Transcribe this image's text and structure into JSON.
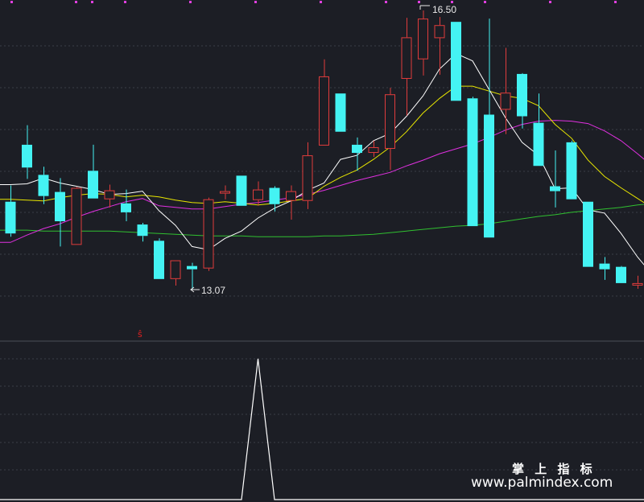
{
  "watermark": {
    "line1": "掌 上 指 标",
    "line2": "www.palmindex.com"
  },
  "colors": {
    "background": "#1c1e25",
    "up": "#e03c3c",
    "down": "#44f3f3",
    "ma5": "#ffffff",
    "ma10": "#e8e600",
    "ma20": "#e030e0",
    "ma60": "#30c030",
    "indicator": "#ffffff",
    "signal": "#e02020",
    "grid": "#3a3d47",
    "dots": "#e040e0"
  },
  "chart_data": {
    "type": "candlestick",
    "price_range": [
      12.3,
      16.5
    ],
    "annotations": {
      "high": "16.50",
      "low": "13.07"
    },
    "signal_marker": "ŝ",
    "candles": [
      {
        "o": 14.15,
        "h": 14.35,
        "l": 13.72,
        "c": 13.76
      },
      {
        "o": 14.85,
        "h": 15.09,
        "l": 14.43,
        "c": 14.57
      },
      {
        "o": 14.48,
        "h": 14.58,
        "l": 14.12,
        "c": 14.22
      },
      {
        "o": 14.27,
        "h": 14.44,
        "l": 13.6,
        "c": 13.91
      },
      {
        "o": 13.62,
        "h": 14.33,
        "l": 13.62,
        "c": 14.32
      },
      {
        "o": 14.53,
        "h": 14.85,
        "l": 14.19,
        "c": 14.19
      },
      {
        "o": 14.18,
        "h": 14.36,
        "l": 14.08,
        "c": 14.29
      },
      {
        "o": 14.13,
        "h": 14.3,
        "l": 13.91,
        "c": 14.02
      },
      {
        "o": 13.87,
        "h": 13.89,
        "l": 13.66,
        "c": 13.73
      },
      {
        "o": 13.67,
        "h": 13.7,
        "l": 13.2,
        "c": 13.2
      },
      {
        "o": 13.2,
        "h": 13.43,
        "l": 13.12,
        "c": 13.43
      },
      {
        "o": 13.36,
        "h": 13.4,
        "l": 13.07,
        "c": 13.32
      },
      {
        "o": 13.33,
        "h": 14.2,
        "l": 13.3,
        "c": 14.18
      },
      {
        "o": 14.25,
        "h": 14.35,
        "l": 14.18,
        "c": 14.28
      },
      {
        "o": 14.47,
        "h": 14.47,
        "l": 14.1,
        "c": 14.1
      },
      {
        "o": 14.17,
        "h": 14.4,
        "l": 14.1,
        "c": 14.3
      },
      {
        "o": 14.32,
        "h": 14.34,
        "l": 14.03,
        "c": 14.12
      },
      {
        "o": 14.16,
        "h": 14.35,
        "l": 13.93,
        "c": 14.28
      },
      {
        "o": 14.16,
        "h": 14.88,
        "l": 14.06,
        "c": 14.72
      },
      {
        "o": 14.84,
        "h": 15.9,
        "l": 14.84,
        "c": 15.69
      },
      {
        "o": 15.48,
        "h": 15.48,
        "l": 15.01,
        "c": 15.01
      },
      {
        "o": 14.85,
        "h": 14.94,
        "l": 14.53,
        "c": 14.75
      },
      {
        "o": 14.75,
        "h": 14.9,
        "l": 14.7,
        "c": 14.82
      },
      {
        "o": 14.8,
        "h": 15.55,
        "l": 14.54,
        "c": 15.47
      },
      {
        "o": 15.66,
        "h": 16.41,
        "l": 15.21,
        "c": 16.17
      },
      {
        "o": 15.9,
        "h": 16.5,
        "l": 15.7,
        "c": 16.4
      },
      {
        "o": 16.16,
        "h": 16.42,
        "l": 15.71,
        "c": 16.32
      },
      {
        "o": 16.36,
        "h": 16.36,
        "l": 15.39,
        "c": 15.39
      },
      {
        "o": 15.42,
        "h": 15.44,
        "l": 13.85,
        "c": 13.85
      },
      {
        "o": 15.22,
        "h": 16.4,
        "l": 13.71,
        "c": 13.71
      },
      {
        "o": 15.28,
        "h": 16.04,
        "l": 14.98,
        "c": 15.49
      },
      {
        "o": 15.72,
        "h": 15.73,
        "l": 15.05,
        "c": 15.2
      },
      {
        "o": 15.12,
        "h": 15.48,
        "l": 14.59,
        "c": 14.59
      },
      {
        "o": 14.34,
        "h": 14.78,
        "l": 14.08,
        "c": 14.28
      },
      {
        "o": 14.88,
        "h": 14.9,
        "l": 14.18,
        "c": 14.18
      },
      {
        "o": 14.15,
        "h": 14.15,
        "l": 13.35,
        "c": 13.35
      },
      {
        "o": 13.39,
        "h": 13.47,
        "l": 13.19,
        "c": 13.32
      },
      {
        "o": 13.35,
        "h": 13.36,
        "l": 13.15,
        "c": 13.15
      },
      {
        "o": 13.12,
        "h": 13.24,
        "l": 13.08,
        "c": 13.15
      },
      {
        "o": 13.22,
        "h": 13.32,
        "l": 13.18,
        "c": 13.21
      }
    ],
    "ma5": [
      14.36,
      14.37,
      14.44,
      14.38,
      14.34,
      14.3,
      14.24,
      14.25,
      14.28,
      14.04,
      13.86,
      13.6,
      13.56,
      13.7,
      13.79,
      13.95,
      14.07,
      14.16,
      14.29,
      14.38,
      14.67,
      14.72,
      14.9,
      14.99,
      15.2,
      15.45,
      15.78,
      15.97,
      15.88,
      15.53,
      15.18,
      14.88,
      14.72,
      14.31,
      14.32,
      14.05,
      14.01,
      13.76,
      13.47,
      13.23
    ],
    "ma10": [
      14.18,
      14.17,
      14.16,
      14.2,
      14.23,
      14.25,
      14.24,
      14.21,
      14.23,
      14.21,
      14.17,
      14.14,
      14.13,
      14.15,
      14.13,
      14.11,
      14.13,
      14.16,
      14.19,
      14.34,
      14.45,
      14.54,
      14.67,
      14.82,
      15.01,
      15.24,
      15.42,
      15.57,
      15.57,
      15.51,
      15.45,
      15.42,
      15.33,
      15.1,
      14.93,
      14.66,
      14.46,
      14.32,
      14.19,
      14.06
    ],
    "ma20": [
      13.65,
      13.74,
      13.82,
      13.88,
      13.96,
      14.03,
      14.09,
      14.15,
      14.19,
      14.1,
      14.08,
      14.06,
      14.06,
      14.09,
      14.12,
      14.14,
      14.17,
      14.2,
      14.24,
      14.29,
      14.35,
      14.41,
      14.46,
      14.51,
      14.59,
      14.66,
      14.74,
      14.8,
      14.86,
      14.94,
      15.03,
      15.1,
      15.14,
      15.15,
      15.14,
      15.11,
      15.02,
      14.9,
      14.74,
      14.57
    ],
    "ma60": [
      13.8,
      13.8,
      13.79,
      13.79,
      13.79,
      13.79,
      13.79,
      13.78,
      13.77,
      13.76,
      13.75,
      13.74,
      13.73,
      13.73,
      13.73,
      13.72,
      13.72,
      13.72,
      13.72,
      13.73,
      13.73,
      13.74,
      13.75,
      13.77,
      13.79,
      13.81,
      13.83,
      13.85,
      13.86,
      13.88,
      13.91,
      13.94,
      13.97,
      13.99,
      14.02,
      14.04,
      14.06,
      14.08,
      14.11,
      14.13
    ],
    "indicator": [
      0,
      0,
      0,
      0,
      0,
      0,
      0,
      0,
      0,
      0,
      0,
      0,
      0,
      0,
      0,
      1,
      0,
      0,
      0,
      0,
      0,
      0,
      0,
      0,
      0,
      0,
      0,
      0,
      0,
      0,
      0,
      0,
      0,
      0,
      0,
      0,
      0,
      0,
      0,
      0
    ]
  }
}
